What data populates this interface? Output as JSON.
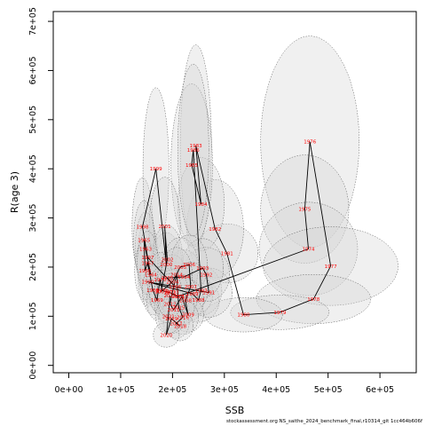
{
  "footnote": "stockassessment.org NS_saithe_2024_benchmark_final,r10314_git 1cc464b606f",
  "chart_data": {
    "type": "scatter",
    "title": "",
    "xlabel": "SSB",
    "ylabel": "R(age 3)",
    "xlim": [
      -30000,
      670000
    ],
    "ylim": [
      -15000,
      720000
    ],
    "x_ticks": [
      0,
      100000,
      200000,
      300000,
      400000,
      500000,
      600000
    ],
    "x_tick_labels": [
      "0e+00",
      "1e+05",
      "2e+05",
      "3e+05",
      "4e+05",
      "5e+05",
      "6e+05"
    ],
    "y_ticks": [
      0,
      100000,
      200000,
      300000,
      400000,
      500000,
      600000,
      700000
    ],
    "y_tick_labels": [
      "0e+00",
      "1e+05",
      "2e+05",
      "3e+05",
      "4e+05",
      "5e+05",
      "6e+05",
      "7e+05"
    ],
    "grid": false,
    "point_label_color": "#ff0000",
    "line_color": "#000000",
    "ellipse_fill": "#d3d3d3",
    "series": [
      {
        "points": [
          {
            "year": "1976",
            "x": 465000,
            "y": 455000,
            "rx": 95000,
            "ry": 215000
          },
          {
            "year": "1975",
            "x": 455000,
            "y": 318000,
            "rx": 85000,
            "ry": 110000
          },
          {
            "year": "1974",
            "x": 462000,
            "y": 237000,
            "rx": 95000,
            "ry": 95000
          },
          {
            "year": "1977",
            "x": 505000,
            "y": 202000,
            "rx": 130000,
            "ry": 80000
          },
          {
            "year": "1978",
            "x": 472000,
            "y": 135000,
            "rx": 110000,
            "ry": 50000
          },
          {
            "year": "1979",
            "x": 407000,
            "y": 108000,
            "rx": 95000,
            "ry": 35000
          },
          {
            "year": "1980",
            "x": 337000,
            "y": 103000,
            "rx": 75000,
            "ry": 35000
          },
          {
            "year": "1981",
            "x": 305000,
            "y": 228000,
            "rx": 60000,
            "ry": 60000
          },
          {
            "year": "1982",
            "x": 282000,
            "y": 278000,
            "rx": 55000,
            "ry": 100000
          },
          {
            "year": "1983",
            "x": 245000,
            "y": 447000,
            "rx": 30000,
            "ry": 205000
          },
          {
            "year": "1984",
            "x": 255000,
            "y": 328000,
            "rx": 45000,
            "ry": 95000
          },
          {
            "year": "1985",
            "x": 237000,
            "y": 408000,
            "rx": 40000,
            "ry": 165000
          },
          {
            "year": "1986",
            "x": 240000,
            "y": 438000,
            "rx": 30000,
            "ry": 175000
          },
          {
            "year": "1987",
            "x": 255000,
            "y": 152000,
            "rx": 40000,
            "ry": 50000
          },
          {
            "year": "1988",
            "x": 250000,
            "y": 133000,
            "rx": 40000,
            "ry": 45000
          },
          {
            "year": "1989",
            "x": 238000,
            "y": 146000,
            "rx": 40000,
            "ry": 45000
          },
          {
            "year": "1990",
            "x": 152000,
            "y": 170000,
            "rx": 18000,
            "ry": 50000
          },
          {
            "year": "1991",
            "x": 270000,
            "y": 148000,
            "rx": 45000,
            "ry": 50000
          },
          {
            "year": "1992",
            "x": 265000,
            "y": 185000,
            "rx": 45000,
            "ry": 55000
          },
          {
            "year": "1993",
            "x": 258000,
            "y": 198000,
            "rx": 40000,
            "ry": 60000
          },
          {
            "year": "1994",
            "x": 222000,
            "y": 180000,
            "rx": 35000,
            "ry": 55000
          },
          {
            "year": "1995",
            "x": 190000,
            "y": 178000,
            "rx": 35000,
            "ry": 55000
          },
          {
            "year": "1996",
            "x": 205000,
            "y": 160000,
            "rx": 35000,
            "ry": 50000
          },
          {
            "year": "1997",
            "x": 152000,
            "y": 220000,
            "rx": 20000,
            "ry": 75000
          },
          {
            "year": "1998",
            "x": 142000,
            "y": 282000,
            "rx": 20000,
            "ry": 100000
          },
          {
            "year": "1999",
            "x": 168000,
            "y": 400000,
            "rx": 25000,
            "ry": 165000
          },
          {
            "year": "2000",
            "x": 188000,
            "y": 205000,
            "rx": 30000,
            "ry": 65000
          },
          {
            "year": "2001",
            "x": 185000,
            "y": 283000,
            "rx": 30000,
            "ry": 100000
          },
          {
            "year": "2002",
            "x": 190000,
            "y": 215000,
            "rx": 30000,
            "ry": 70000
          },
          {
            "year": "2003",
            "x": 178000,
            "y": 150000,
            "rx": 25000,
            "ry": 45000
          },
          {
            "year": "1963",
            "x": 148000,
            "y": 237000,
            "rx": 20000,
            "ry": 75000
          },
          {
            "year": "1964",
            "x": 158000,
            "y": 185000,
            "rx": 20000,
            "ry": 60000
          },
          {
            "year": "1965",
            "x": 145000,
            "y": 255000,
            "rx": 20000,
            "ry": 80000
          },
          {
            "year": "1966",
            "x": 147000,
            "y": 193000,
            "rx": 20000,
            "ry": 60000
          },
          {
            "year": "1967",
            "x": 152000,
            "y": 208000,
            "rx": 20000,
            "ry": 65000
          },
          {
            "year": "1968",
            "x": 162000,
            "y": 153000,
            "rx": 20000,
            "ry": 50000
          },
          {
            "year": "1969",
            "x": 170000,
            "y": 133000,
            "rx": 20000,
            "ry": 40000
          },
          {
            "year": "1970",
            "x": 176000,
            "y": 175000,
            "rx": 25000,
            "ry": 55000
          },
          {
            "year": "1971",
            "x": 180000,
            "y": 152000,
            "rx": 25000,
            "ry": 50000
          },
          {
            "year": "1972",
            "x": 195000,
            "y": 148000,
            "rx": 30000,
            "ry": 50000
          },
          {
            "year": "1973",
            "x": 210000,
            "y": 140000,
            "rx": 30000,
            "ry": 45000
          },
          {
            "year": "2004",
            "x": 200000,
            "y": 170000,
            "rx": 30000,
            "ry": 55000
          },
          {
            "year": "2005",
            "x": 215000,
            "y": 200000,
            "rx": 35000,
            "ry": 60000
          },
          {
            "year": "2006",
            "x": 232000,
            "y": 205000,
            "rx": 35000,
            "ry": 60000
          },
          {
            "year": "2007",
            "x": 235000,
            "y": 160000,
            "rx": 35000,
            "ry": 50000
          },
          {
            "year": "2008",
            "x": 225000,
            "y": 132000,
            "rx": 35000,
            "ry": 45000
          },
          {
            "year": "2009",
            "x": 230000,
            "y": 103000,
            "rx": 30000,
            "ry": 35000
          },
          {
            "year": "2010",
            "x": 218000,
            "y": 140000,
            "rx": 30000,
            "ry": 45000
          },
          {
            "year": "2011",
            "x": 202000,
            "y": 113000,
            "rx": 30000,
            "ry": 40000
          },
          {
            "year": "2012",
            "x": 195000,
            "y": 125000,
            "rx": 30000,
            "ry": 40000
          },
          {
            "year": "2013",
            "x": 200000,
            "y": 150000,
            "rx": 30000,
            "ry": 45000
          },
          {
            "year": "2014",
            "x": 208000,
            "y": 185000,
            "rx": 30000,
            "ry": 55000
          },
          {
            "year": "2015",
            "x": 212000,
            "y": 118000,
            "rx": 30000,
            "ry": 40000
          },
          {
            "year": "2016",
            "x": 220000,
            "y": 98000,
            "rx": 30000,
            "ry": 35000
          },
          {
            "year": "2017",
            "x": 207000,
            "y": 85000,
            "rx": 25000,
            "ry": 30000
          },
          {
            "year": "2018",
            "x": 215000,
            "y": 80000,
            "rx": 25000,
            "ry": 30000
          },
          {
            "year": "2019",
            "x": 198000,
            "y": 95000,
            "rx": 25000,
            "ry": 30000
          },
          {
            "year": "2020",
            "x": 188000,
            "y": 62000,
            "rx": 25000,
            "ry": 25000
          },
          {
            "year": "2021",
            "x": 192000,
            "y": 100000,
            "rx": 25000,
            "ry": 35000
          },
          {
            "year": "2022",
            "x": 195000,
            "y": 142000,
            "rx": 25000,
            "ry": 45000
          }
        ]
      }
    ]
  }
}
